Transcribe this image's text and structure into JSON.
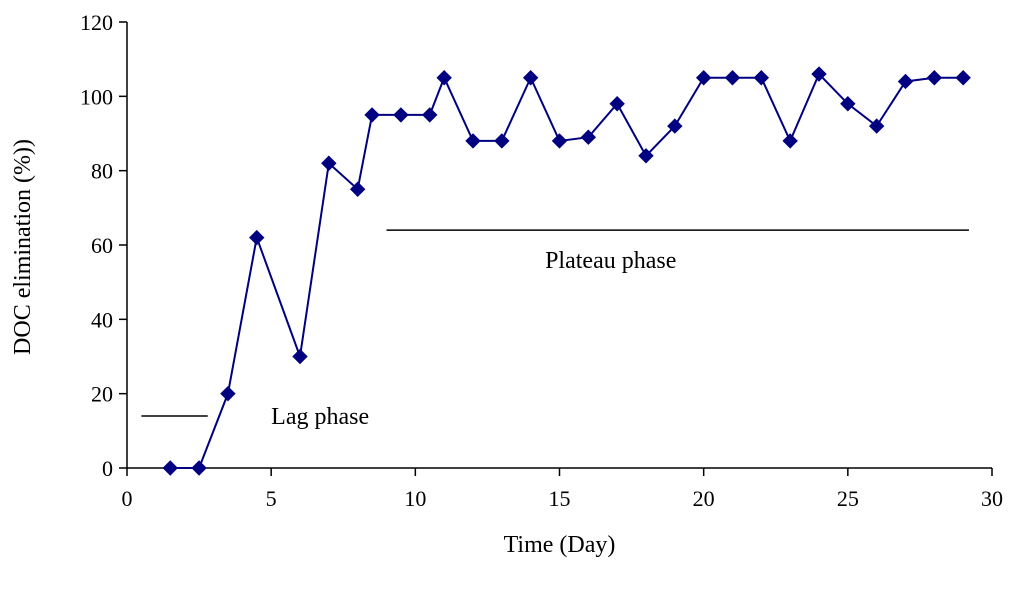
{
  "chart_data": {
    "type": "line",
    "title": "",
    "xlabel": "Time (Day)",
    "ylabel": "DOC elimination (%))",
    "xlim": [
      0,
      30
    ],
    "ylim": [
      0,
      120
    ],
    "xticks": [
      0,
      5,
      10,
      15,
      20,
      25,
      30
    ],
    "yticks": [
      0,
      20,
      40,
      60,
      80,
      100,
      120
    ],
    "grid": false,
    "legend": "none",
    "series": [
      {
        "color": "#000080",
        "marker": "diamond",
        "x": [
          1.5,
          2.5,
          3.5,
          4.5,
          6,
          7,
          8,
          8.5,
          9.5,
          10.5,
          11,
          12,
          13,
          14,
          15,
          16,
          17,
          18,
          19,
          20,
          21,
          22,
          23,
          24,
          25,
          26,
          27,
          28,
          29
        ],
        "y": [
          0,
          0,
          20,
          62,
          30,
          82,
          75,
          95,
          95,
          95,
          105,
          88,
          88,
          105,
          88,
          89,
          98,
          84,
          92,
          105,
          105,
          105,
          88,
          106,
          98,
          92,
          104,
          105,
          105
        ]
      }
    ],
    "annotations": [
      {
        "text": "Lag phase",
        "line_x": [
          0.5,
          2.8
        ],
        "line_y": 14,
        "text_x": 5,
        "text_y": 14
      },
      {
        "text": "Plateau phase",
        "line_x": [
          9,
          29.2
        ],
        "line_y": 64,
        "text_x": 14.5,
        "text_y": 56
      }
    ]
  }
}
